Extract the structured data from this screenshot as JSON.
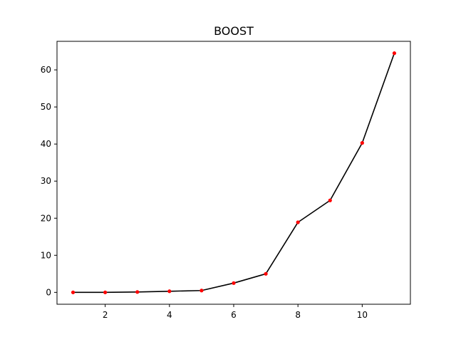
{
  "chart_data": {
    "type": "line",
    "title": "BOOST",
    "xlabel": "",
    "ylabel": "",
    "xlim": [
      0.5,
      11.5
    ],
    "ylim": [
      -3.2,
      67.7
    ],
    "xticks": [
      2,
      4,
      6,
      8,
      10
    ],
    "yticks": [
      0,
      10,
      20,
      30,
      40,
      50,
      60
    ],
    "grid": false,
    "series": [
      {
        "line_color": "#000000",
        "marker_color": "#ff0000",
        "x": [
          1,
          2,
          3,
          4,
          5,
          6,
          7,
          8,
          9,
          10,
          11
        ],
        "y": [
          0.0,
          0.0,
          0.1,
          0.3,
          0.5,
          2.5,
          5.0,
          18.9,
          24.8,
          40.3,
          64.5
        ]
      }
    ]
  }
}
